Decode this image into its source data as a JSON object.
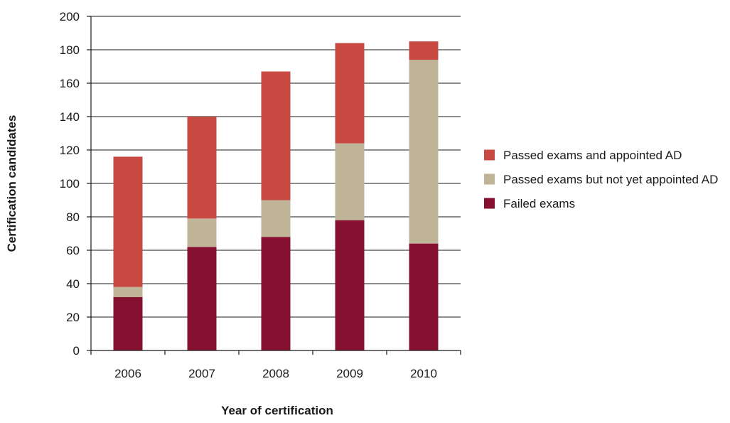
{
  "chart_data": {
    "type": "bar",
    "stacked": true,
    "categories": [
      "2006",
      "2007",
      "2008",
      "2009",
      "2010"
    ],
    "series": [
      {
        "name": "Failed exams",
        "color": "#85102f",
        "values": [
          32,
          62,
          68,
          78,
          64
        ]
      },
      {
        "name": "Passed exams but not yet appointed AD",
        "color": "#bfb398",
        "values": [
          6,
          17,
          22,
          46,
          110
        ]
      },
      {
        "name": "Passed exams and appointed AD",
        "color": "#c84941",
        "values": [
          78,
          61,
          77,
          60,
          11
        ]
      }
    ],
    "title": "",
    "xlabel": "Year of certification",
    "ylabel": "Certification candidates",
    "ylim": [
      0,
      200
    ],
    "yticks": [
      0,
      20,
      40,
      60,
      80,
      100,
      120,
      140,
      160,
      180,
      200
    ],
    "grid": true,
    "legend_position": "right",
    "legend_order": [
      "Passed exams and appointed AD",
      "Passed exams but not yet appointed AD",
      "Failed exams"
    ]
  }
}
